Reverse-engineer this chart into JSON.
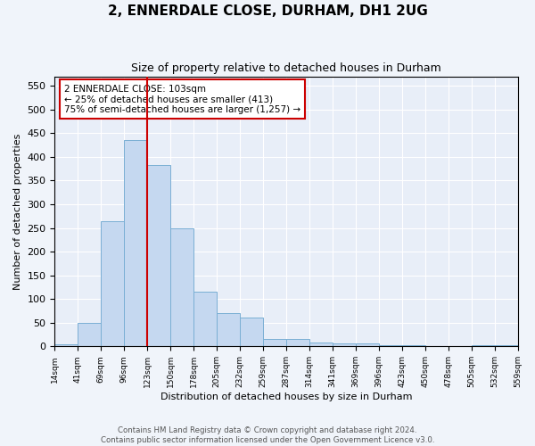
{
  "title": "2, ENNERDALE CLOSE, DURHAM, DH1 2UG",
  "subtitle": "Size of property relative to detached houses in Durham",
  "xlabel": "Distribution of detached houses by size in Durham",
  "ylabel": "Number of detached properties",
  "bar_values": [
    5,
    50,
    265,
    435,
    383,
    250,
    115,
    70,
    60,
    15,
    15,
    8,
    6,
    6,
    2,
    3,
    0,
    0,
    3,
    2
  ],
  "bar_labels": [
    "14sqm",
    "41sqm",
    "69sqm",
    "96sqm",
    "123sqm",
    "150sqm",
    "178sqm",
    "205sqm",
    "232sqm",
    "259sqm",
    "287sqm",
    "314sqm",
    "341sqm",
    "369sqm",
    "396sqm",
    "423sqm",
    "450sqm",
    "478sqm",
    "505sqm",
    "532sqm",
    "559sqm"
  ],
  "bar_color": "#c5d8f0",
  "bar_edge_color": "#7aafd4",
  "vline_x": 3.5,
  "vline_color": "#cc0000",
  "annotation_text": "2 ENNERDALE CLOSE: 103sqm\n← 25% of detached houses are smaller (413)\n75% of semi-detached houses are larger (1,257) →",
  "annotation_box_color": "#ffffff",
  "annotation_box_edge": "#cc0000",
  "ylim": [
    0,
    570
  ],
  "yticks": [
    0,
    50,
    100,
    150,
    200,
    250,
    300,
    350,
    400,
    450,
    500,
    550
  ],
  "footer": "Contains HM Land Registry data © Crown copyright and database right 2024.\nContains public sector information licensed under the Open Government Licence v3.0.",
  "background_color": "#e8eef8",
  "grid_color": "#ffffff"
}
